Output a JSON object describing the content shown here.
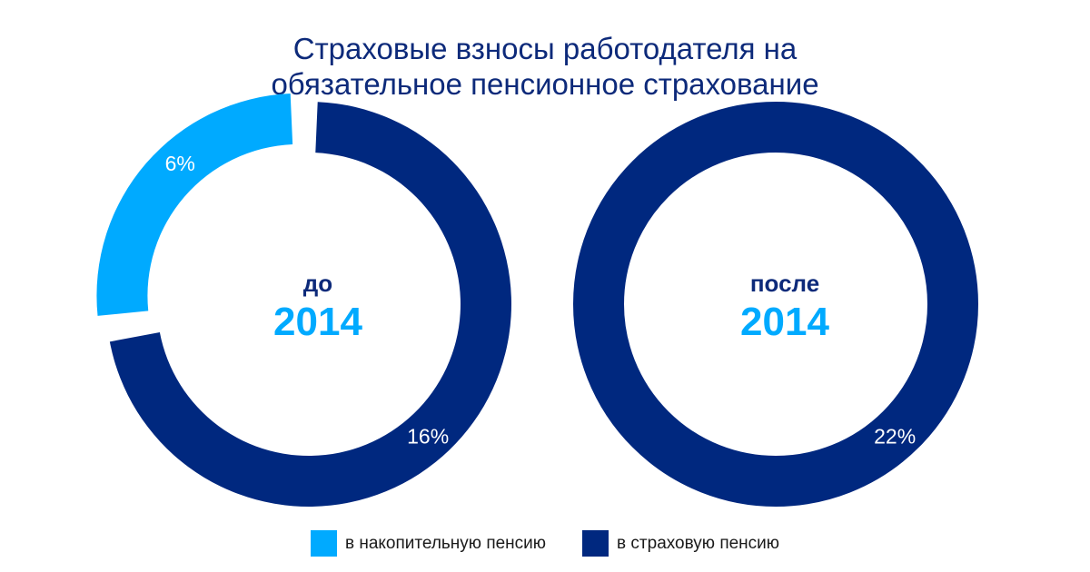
{
  "title": {
    "line1": "Страховые взносы работодателя на",
    "line2": "обязательное пенсионное страхование"
  },
  "colors": {
    "funded": "#00aaff",
    "insurance": "#00287f",
    "title": "#0d2a7a",
    "center_label": "#0d2a7a",
    "center_year": "#00aaff"
  },
  "chart_data": [
    {
      "type": "pie",
      "subtype": "donut",
      "center_label": "до",
      "center_year": "2014",
      "slices": [
        {
          "name": "в накопительную пенсию",
          "value": 6,
          "label": "6%",
          "color": "#00aaff"
        },
        {
          "name": "в страховую пенсию",
          "value": 16,
          "label": "16%",
          "color": "#00287f"
        }
      ]
    },
    {
      "type": "pie",
      "subtype": "donut",
      "center_label": "после",
      "center_year": "2014",
      "slices": [
        {
          "name": "в страховую пенсию",
          "value": 22,
          "label": "22%",
          "color": "#00287f"
        }
      ]
    }
  ],
  "legend": [
    {
      "label": "в накопительную пенсию",
      "color": "#00aaff"
    },
    {
      "label": "в страховую пенсию",
      "color": "#00287f"
    }
  ]
}
